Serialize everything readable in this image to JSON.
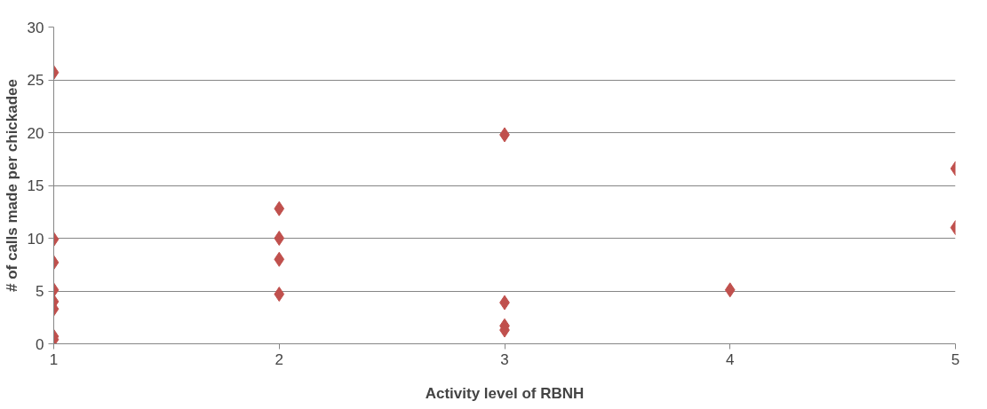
{
  "chart_data": {
    "type": "scatter",
    "xlabel": "Activity level of RBNH",
    "ylabel": "# of calls made per chickadee",
    "x": [
      1,
      1,
      1,
      1,
      1,
      1,
      1,
      1,
      2,
      2,
      2,
      2,
      3,
      3,
      3,
      3,
      4,
      5,
      5
    ],
    "values": [
      25.7,
      9.9,
      7.7,
      5.1,
      4.0,
      3.3,
      0.7,
      0.4,
      12.8,
      10,
      8,
      4.7,
      19.8,
      3.9,
      1.7,
      1.3,
      5.1,
      16.6,
      11
    ],
    "color": "#c0504d",
    "marker": "diamond",
    "xlim": [
      1,
      5
    ],
    "xticks": [
      1,
      2,
      3,
      4,
      5
    ],
    "ylim": [
      0,
      30
    ],
    "yticks": [
      0,
      5,
      10,
      15,
      20,
      25,
      30
    ],
    "grid": "y",
    "legend": false
  }
}
